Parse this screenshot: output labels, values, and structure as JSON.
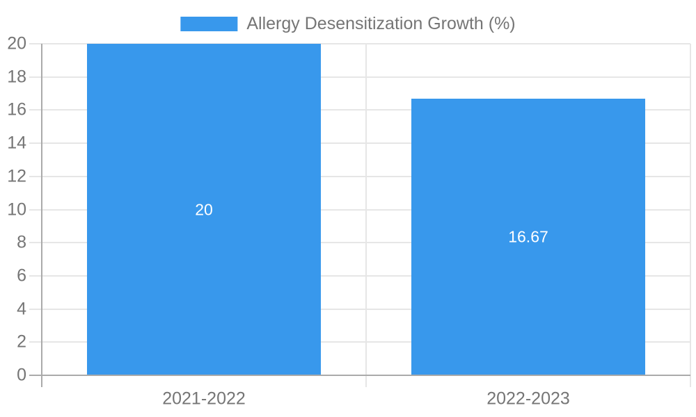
{
  "chart_data": {
    "type": "bar",
    "title": "Allergy Desensitization Growth (%)",
    "categories": [
      "2021-2022",
      "2022-2023"
    ],
    "values": [
      20,
      16.67
    ],
    "xlabel": "",
    "ylabel": "",
    "ylim": [
      0,
      20
    ],
    "ytick_step": 2,
    "yticks": [
      0,
      2,
      4,
      6,
      8,
      10,
      12,
      14,
      16,
      18,
      20
    ],
    "grid": true,
    "legend_position": "top-center",
    "colors": {
      "bar": "#3898ec",
      "grid": "#e6e6e6",
      "axis": "#aaaaaa",
      "text": "#757575",
      "value_label": "#ffffff",
      "background": "#ffffff"
    }
  }
}
